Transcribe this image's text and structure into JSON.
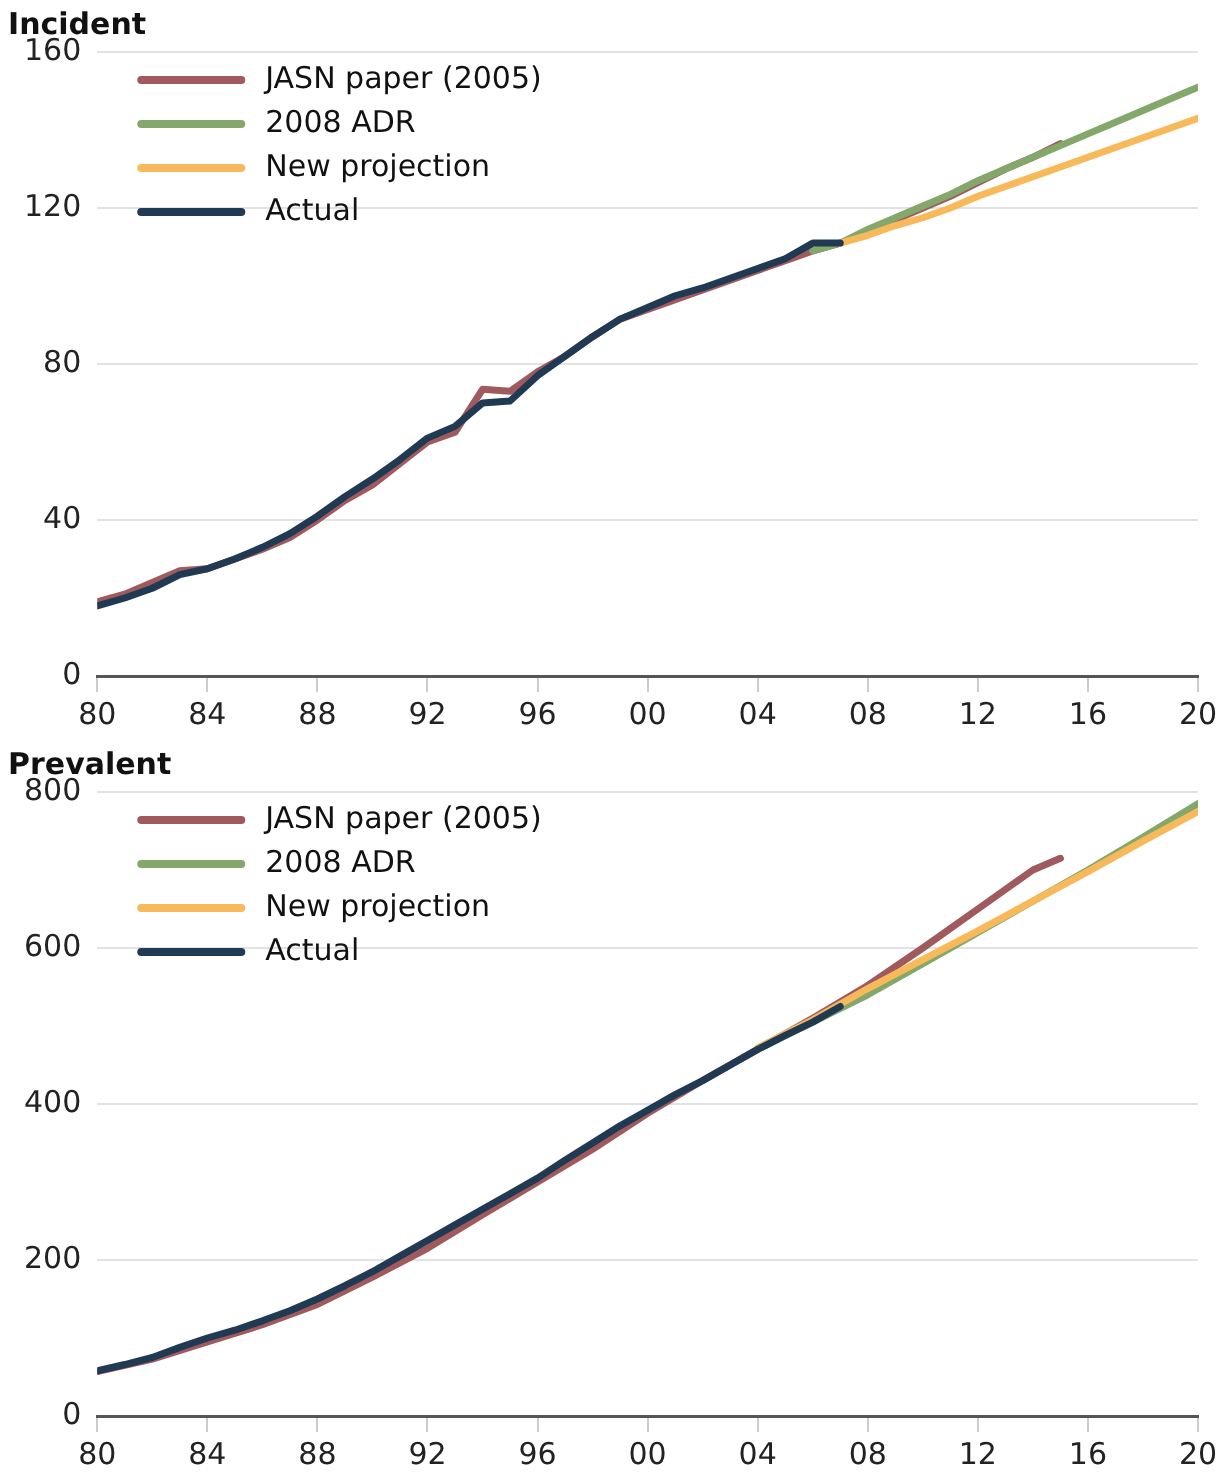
{
  "chart_data": [
    {
      "type": "line",
      "title": "Incident",
      "xlim": [
        1980,
        2020
      ],
      "xticks": [
        {
          "value": 1980,
          "label": "80"
        },
        {
          "value": 1984,
          "label": "84"
        },
        {
          "value": 1988,
          "label": "88"
        },
        {
          "value": 1992,
          "label": "92"
        },
        {
          "value": 1996,
          "label": "96"
        },
        {
          "value": 2000,
          "label": "00"
        },
        {
          "value": 2004,
          "label": "04"
        },
        {
          "value": 2008,
          "label": "08"
        },
        {
          "value": 2012,
          "label": "12"
        },
        {
          "value": 2016,
          "label": "16"
        },
        {
          "value": 2020,
          "label": "20"
        }
      ],
      "ylim": [
        0,
        160
      ],
      "yticks": [
        0,
        40,
        80,
        120,
        160
      ],
      "grid": "y",
      "legend": "top left",
      "marker": "none",
      "line_style": "solid",
      "series": [
        {
          "name": "JASN paper (2005)",
          "color": "#a05a5e",
          "x": [
            1980,
            1981,
            1982,
            1983,
            1984,
            1985,
            1986,
            1987,
            1988,
            1989,
            1990,
            1991,
            1992,
            1993,
            1994,
            1995,
            1996,
            1997,
            1998,
            1999,
            2000,
            2001,
            2002,
            2003,
            2004,
            2005,
            2006,
            2007,
            2008,
            2009,
            2010,
            2011,
            2012,
            2013,
            2014,
            2015
          ],
          "values": [
            19,
            21,
            24,
            27,
            27.5,
            30,
            32.5,
            35.5,
            40,
            45,
            49,
            54.5,
            60,
            62.5,
            73.5,
            73,
            78,
            82,
            87,
            91.5,
            94,
            96.5,
            99,
            101.5,
            104,
            106.5,
            109,
            111,
            114,
            117,
            120,
            123,
            126.5,
            130,
            133,
            136.5
          ]
        },
        {
          "name": "2008 ADR",
          "color": "#84a86c",
          "x": [
            2006,
            2007,
            2008,
            2009,
            2010,
            2011,
            2012,
            2013,
            2014,
            2015,
            2016,
            2017,
            2018,
            2019,
            2020
          ],
          "values": [
            109,
            111,
            114.5,
            117.5,
            120.5,
            123.5,
            127,
            130,
            133,
            136,
            139,
            142,
            145,
            148,
            151
          ]
        },
        {
          "name": "New projection",
          "color": "#f8b95a",
          "x": [
            2007,
            2008,
            2009,
            2010,
            2011,
            2012,
            2013,
            2014,
            2015,
            2016,
            2017,
            2018,
            2019,
            2020
          ],
          "values": [
            111,
            113,
            115.5,
            117.5,
            120,
            123,
            125.5,
            128,
            130.5,
            133,
            135.5,
            138,
            140.5,
            143
          ]
        },
        {
          "name": "Actual",
          "color": "#1f3a52",
          "x": [
            1980,
            1981,
            1982,
            1983,
            1984,
            1985,
            1986,
            1987,
            1988,
            1989,
            1990,
            1991,
            1992,
            1993,
            1994,
            1995,
            1996,
            1997,
            1998,
            1999,
            2000,
            2001,
            2002,
            2003,
            2004,
            2005,
            2006,
            2007
          ],
          "values": [
            18,
            20,
            22.5,
            26,
            27.5,
            30,
            33,
            36.5,
            41,
            46,
            50.5,
            55.5,
            61,
            64,
            70,
            70.5,
            77,
            82,
            87,
            91.5,
            94.5,
            97.5,
            99.5,
            102,
            104.5,
            107,
            111,
            111
          ]
        }
      ]
    },
    {
      "type": "line",
      "title": "Prevalent",
      "xlim": [
        1980,
        2020
      ],
      "xticks": [
        {
          "value": 1980,
          "label": "80"
        },
        {
          "value": 1984,
          "label": "84"
        },
        {
          "value": 1988,
          "label": "88"
        },
        {
          "value": 1992,
          "label": "92"
        },
        {
          "value": 1996,
          "label": "96"
        },
        {
          "value": 2000,
          "label": "00"
        },
        {
          "value": 2004,
          "label": "04"
        },
        {
          "value": 2008,
          "label": "08"
        },
        {
          "value": 2012,
          "label": "12"
        },
        {
          "value": 2016,
          "label": "16"
        },
        {
          "value": 2020,
          "label": "20"
        }
      ],
      "ylim": [
        0,
        800
      ],
      "yticks": [
        0,
        200,
        400,
        600,
        800
      ],
      "grid": "y",
      "legend": "top left",
      "marker": "none",
      "line_style": "solid",
      "series": [
        {
          "name": "JASN paper (2005)",
          "color": "#a05a5e",
          "x": [
            1980,
            1982,
            1984,
            1986,
            1988,
            1990,
            1992,
            1994,
            1996,
            1998,
            2000,
            2002,
            2004,
            2006,
            2008,
            2010,
            2012,
            2014,
            2015
          ],
          "values": [
            57,
            73,
            95,
            117,
            143,
            178,
            215,
            258,
            300,
            342,
            388,
            430,
            470,
            510,
            552,
            600,
            650,
            700,
            715
          ]
        },
        {
          "name": "2008 ADR",
          "color": "#84a86c",
          "x": [
            2004,
            2006,
            2008,
            2010,
            2012,
            2014,
            2016,
            2018,
            2020
          ],
          "values": [
            470,
            505,
            540,
            580,
            620,
            660,
            700,
            742,
            785
          ]
        },
        {
          "name": "New projection",
          "color": "#f8b95a",
          "x": [
            2004,
            2006,
            2008,
            2010,
            2012,
            2014,
            2016,
            2018,
            2020
          ],
          "values": [
            472,
            508,
            548,
            585,
            622,
            660,
            698,
            737,
            775
          ]
        },
        {
          "name": "Actual",
          "color": "#1f3a52",
          "x": [
            1980,
            1981,
            1982,
            1983,
            1984,
            1985,
            1986,
            1987,
            1988,
            1989,
            1990,
            1991,
            1992,
            1993,
            1994,
            1995,
            1996,
            1997,
            1998,
            1999,
            2000,
            2001,
            2002,
            2003,
            2004,
            2005,
            2006,
            2007
          ],
          "values": [
            58,
            66,
            75,
            88,
            100,
            110,
            122,
            135,
            150,
            167,
            185,
            205,
            225,
            245,
            265,
            285,
            305,
            328,
            350,
            372,
            392,
            412,
            430,
            450,
            470,
            488,
            505,
            525
          ]
        }
      ]
    }
  ]
}
